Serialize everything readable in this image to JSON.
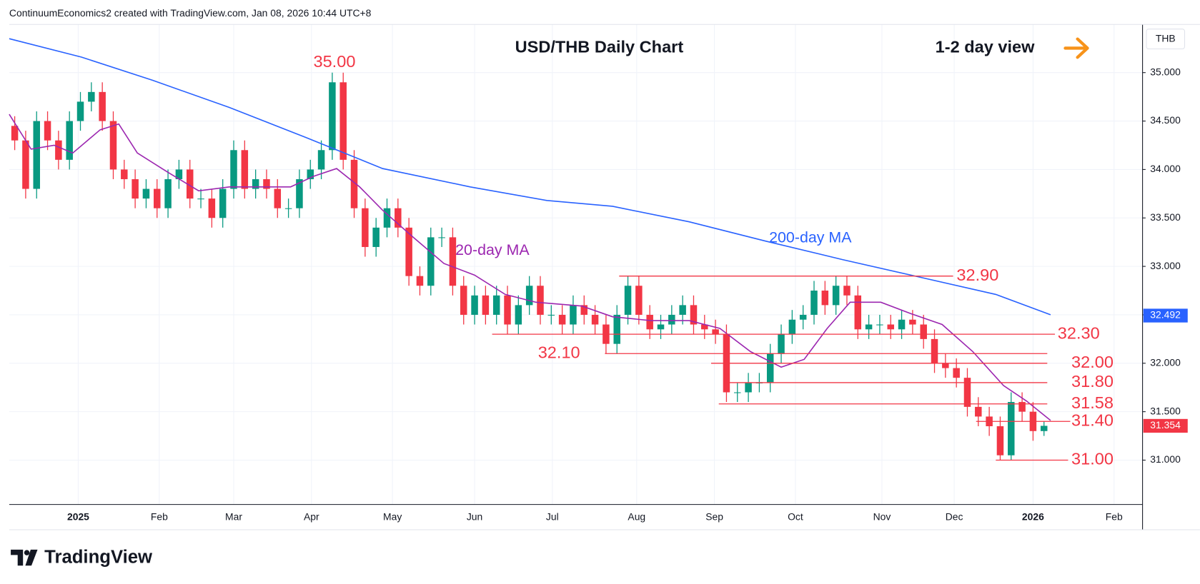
{
  "header": {
    "attribution": "ContinuumEconomics2 created with TradingView.com, Jan 08, 2026 10:44 UTC+8",
    "logo": "TradingView"
  },
  "chart_data": {
    "type": "candlestick",
    "title": "USD/THB Daily Chart",
    "subtitle": "1-2 day view",
    "currency": "THB",
    "xlim": [
      -0.5,
      103
    ],
    "xticks": [
      {
        "value": 5.8,
        "label": "2025"
      },
      {
        "value": 13.2,
        "label": "Feb"
      },
      {
        "value": 20.0,
        "label": "Mar"
      },
      {
        "value": 27.1,
        "label": "Apr"
      },
      {
        "value": 34.5,
        "label": "May"
      },
      {
        "value": 42.0,
        "label": "Jun"
      },
      {
        "value": 49.1,
        "label": "Jul"
      },
      {
        "value": 56.8,
        "label": "Aug"
      },
      {
        "value": 63.9,
        "label": "Sep"
      },
      {
        "value": 71.3,
        "label": "Oct"
      },
      {
        "value": 79.2,
        "label": "Nov"
      },
      {
        "value": 85.8,
        "label": "Dec"
      },
      {
        "value": 93.0,
        "label": "2026"
      },
      {
        "value": 100.4,
        "label": "Feb"
      }
    ],
    "ylim": [
      30.542,
      35.497
    ],
    "yticks": [
      {
        "value": 31,
        "label": "31.000"
      },
      {
        "value": 31.5,
        "label": "31.500"
      },
      {
        "value": 32,
        "label": "32.000"
      },
      {
        "value": 32.5,
        "label": "32.500"
      },
      {
        "value": 33,
        "label": "33.000"
      },
      {
        "value": 33.5,
        "label": "33.500"
      },
      {
        "value": 34,
        "label": "34.000"
      },
      {
        "value": 34.5,
        "label": "34.500"
      },
      {
        "value": 35,
        "label": "35.000"
      }
    ],
    "grid": true,
    "series": [
      {
        "name": "USD/THB",
        "up_color": "#089981",
        "down_color": "#f23645",
        "open": [
          34.45,
          34.3,
          33.8,
          34.5,
          34.3,
          34.1,
          34.5,
          34.7,
          34.8,
          34.5,
          34.0,
          33.9,
          33.7,
          33.8,
          33.6,
          33.9,
          34.0,
          33.7,
          33.7,
          33.5,
          33.8,
          34.2,
          33.8,
          33.9,
          33.8,
          33.6,
          33.6,
          33.9,
          34.0,
          34.2,
          34.9,
          34.1,
          33.6,
          33.2,
          33.4,
          33.6,
          33.4,
          32.9,
          32.8,
          33.3,
          33.3,
          32.8,
          32.5,
          32.7,
          32.5,
          32.7,
          32.4,
          32.6,
          32.8,
          32.5,
          32.5,
          32.4,
          32.6,
          32.5,
          32.4,
          32.2,
          32.5,
          32.8,
          32.5,
          32.35,
          32.4,
          32.5,
          32.6,
          32.4,
          32.35,
          32.3,
          31.7,
          31.7,
          31.8,
          31.8,
          32.1,
          32.3,
          32.45,
          32.5,
          32.75,
          32.6,
          32.8,
          32.7,
          32.35,
          32.4,
          32.4,
          32.35,
          32.45,
          32.4,
          32.25,
          32.0,
          31.95,
          31.85,
          31.55,
          31.45,
          31.35,
          31.05,
          31.6,
          31.5,
          31.3
        ],
        "high": [
          34.55,
          34.4,
          34.6,
          34.6,
          34.4,
          34.6,
          34.8,
          34.9,
          34.9,
          34.6,
          34.1,
          34.0,
          33.9,
          33.9,
          34.0,
          34.1,
          34.1,
          33.8,
          33.8,
          33.9,
          34.3,
          34.3,
          34.0,
          34.0,
          33.9,
          33.7,
          34.0,
          34.1,
          34.3,
          35.0,
          35.0,
          34.2,
          33.7,
          33.5,
          33.7,
          33.7,
          33.5,
          33.0,
          33.4,
          33.4,
          33.4,
          32.9,
          32.8,
          32.8,
          32.8,
          32.8,
          32.7,
          32.9,
          32.9,
          32.6,
          32.6,
          32.7,
          32.7,
          32.6,
          32.5,
          32.6,
          32.9,
          32.9,
          32.6,
          32.5,
          32.6,
          32.7,
          32.7,
          32.5,
          32.45,
          32.4,
          31.8,
          31.9,
          31.9,
          32.2,
          32.4,
          32.55,
          32.6,
          32.85,
          32.85,
          32.9,
          32.9,
          32.8,
          32.5,
          32.5,
          32.5,
          32.55,
          32.55,
          32.5,
          32.35,
          32.1,
          32.05,
          31.95,
          31.65,
          31.55,
          31.45,
          31.7,
          31.7,
          31.6,
          31.4
        ],
        "low": [
          34.2,
          33.7,
          33.7,
          34.2,
          34.0,
          34.0,
          34.4,
          34.6,
          34.4,
          33.9,
          33.8,
          33.6,
          33.6,
          33.5,
          33.5,
          33.8,
          33.6,
          33.6,
          33.4,
          33.4,
          33.7,
          33.7,
          33.7,
          33.7,
          33.5,
          33.5,
          33.5,
          33.8,
          33.9,
          34.1,
          34.0,
          33.5,
          33.1,
          33.1,
          33.3,
          33.3,
          32.8,
          32.7,
          32.7,
          33.2,
          32.7,
          32.4,
          32.4,
          32.4,
          32.4,
          32.3,
          32.3,
          32.5,
          32.4,
          32.4,
          32.3,
          32.3,
          32.4,
          32.3,
          32.1,
          32.1,
          32.4,
          32.4,
          32.25,
          32.25,
          32.3,
          32.4,
          32.3,
          32.25,
          32.2,
          31.6,
          31.6,
          31.6,
          31.7,
          31.7,
          32.0,
          32.2,
          32.35,
          32.4,
          32.5,
          32.5,
          32.6,
          32.25,
          32.25,
          32.3,
          32.25,
          32.25,
          32.3,
          32.15,
          31.9,
          31.85,
          31.75,
          31.45,
          31.35,
          31.25,
          31.0,
          31.0,
          31.4,
          31.2,
          31.25
        ],
        "close": [
          34.3,
          33.8,
          34.5,
          34.3,
          34.1,
          34.5,
          34.7,
          34.8,
          34.5,
          34.0,
          33.9,
          33.7,
          33.8,
          33.6,
          33.9,
          34.0,
          33.7,
          33.7,
          33.5,
          33.8,
          34.2,
          33.8,
          33.9,
          33.8,
          33.6,
          33.6,
          33.9,
          34.0,
          34.2,
          34.9,
          34.1,
          33.6,
          33.2,
          33.4,
          33.6,
          33.4,
          32.9,
          32.8,
          33.3,
          33.3,
          32.8,
          32.5,
          32.7,
          32.5,
          32.7,
          32.4,
          32.6,
          32.8,
          32.5,
          32.5,
          32.4,
          32.6,
          32.5,
          32.4,
          32.2,
          32.5,
          32.8,
          32.5,
          32.35,
          32.4,
          32.5,
          32.6,
          32.4,
          32.35,
          32.3,
          31.7,
          31.7,
          31.8,
          31.8,
          32.1,
          32.3,
          32.45,
          32.5,
          32.75,
          32.6,
          32.8,
          32.7,
          32.35,
          32.4,
          32.4,
          32.35,
          32.45,
          32.4,
          32.25,
          32.0,
          31.95,
          31.85,
          31.55,
          31.45,
          31.35,
          31.05,
          31.6,
          31.5,
          31.3,
          31.354
        ]
      }
    ],
    "lines": [
      {
        "name": "200-day MA",
        "color": "#2962ff",
        "x": [
          -0.5,
          6.1,
          12.6,
          19.6,
          26.6,
          33.6,
          41.6,
          48.6,
          54.6,
          61.6,
          68.6,
          75.6,
          82.6,
          89.6,
          94.6
        ],
        "values": [
          35.35,
          35.16,
          34.92,
          34.64,
          34.33,
          34.01,
          33.82,
          33.68,
          33.62,
          33.46,
          33.26,
          33.07,
          32.89,
          32.71,
          32.5
        ]
      },
      {
        "name": "20-day MA",
        "color": "#9c27b0",
        "x": [
          -0.5,
          1.5,
          3.6,
          5.3,
          7.8,
          9.5,
          11.2,
          14.0,
          16.8,
          19.6,
          22.4,
          25.2,
          27.3,
          29.4,
          31.5,
          33.6,
          36.4,
          39.2,
          42.0,
          44.8,
          47.6,
          51.8,
          54.6,
          58.1,
          61.6,
          64.4,
          67.2,
          70.0,
          72.1,
          74.2,
          76.3,
          79.1,
          81.9,
          84.7,
          87.5,
          90.3,
          92.4,
          94.6
        ],
        "values": [
          34.57,
          34.21,
          34.25,
          34.17,
          34.41,
          34.47,
          34.17,
          33.97,
          33.78,
          33.82,
          33.82,
          33.82,
          33.93,
          34.01,
          33.82,
          33.58,
          33.3,
          33.03,
          32.91,
          32.71,
          32.63,
          32.59,
          32.48,
          32.44,
          32.44,
          32.36,
          32.12,
          31.96,
          32.04,
          32.36,
          32.63,
          32.63,
          32.51,
          32.4,
          32.12,
          31.77,
          31.61,
          31.41
        ]
      }
    ],
    "levels": [
      {
        "value": 32.9,
        "label": "32.90"
      },
      {
        "value": 32.3,
        "label": "32.30"
      },
      {
        "value": 32.1,
        "label": "32.10"
      },
      {
        "value": 32.0,
        "label": "32.00"
      },
      {
        "value": 31.8,
        "label": "31.80"
      },
      {
        "value": 31.58,
        "label": "31.58"
      },
      {
        "value": 31.4,
        "label": "31.40"
      },
      {
        "value": 31.0,
        "label": "31.00"
      }
    ],
    "peak": {
      "value": 35.0,
      "label": "35.00"
    },
    "last_labels": [
      {
        "value": 32.492,
        "label": "32.492",
        "color": "#2962ff"
      },
      {
        "value": 31.354,
        "label": "31.354",
        "color": "#f23645"
      }
    ]
  }
}
